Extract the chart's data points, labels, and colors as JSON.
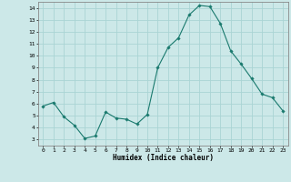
{
  "x": [
    0,
    1,
    2,
    3,
    4,
    5,
    6,
    7,
    8,
    9,
    10,
    11,
    12,
    13,
    14,
    15,
    16,
    17,
    18,
    19,
    20,
    21,
    22,
    23
  ],
  "y": [
    5.8,
    6.1,
    4.9,
    4.2,
    3.1,
    3.3,
    5.3,
    4.8,
    4.7,
    4.3,
    5.1,
    9.0,
    10.7,
    11.5,
    13.4,
    14.2,
    14.1,
    12.7,
    10.4,
    9.3,
    8.1,
    6.8,
    6.5,
    5.4
  ],
  "xlabel": "Humidex (Indice chaleur)",
  "line_color": "#1a7a6e",
  "marker": "D",
  "marker_size": 1.8,
  "bg_color": "#cce8e8",
  "grid_color": "#aad4d4",
  "xlim": [
    -0.5,
    23.5
  ],
  "ylim": [
    2.5,
    14.5
  ],
  "yticks": [
    3,
    4,
    5,
    6,
    7,
    8,
    9,
    10,
    11,
    12,
    13,
    14
  ],
  "xticks": [
    0,
    1,
    2,
    3,
    4,
    5,
    6,
    7,
    8,
    9,
    10,
    11,
    12,
    13,
    14,
    15,
    16,
    17,
    18,
    19,
    20,
    21,
    22,
    23
  ],
  "xlabel_fontsize": 5.5,
  "xlabel_fontweight": "bold",
  "tick_fontsize": 4.5,
  "linewidth": 0.8
}
